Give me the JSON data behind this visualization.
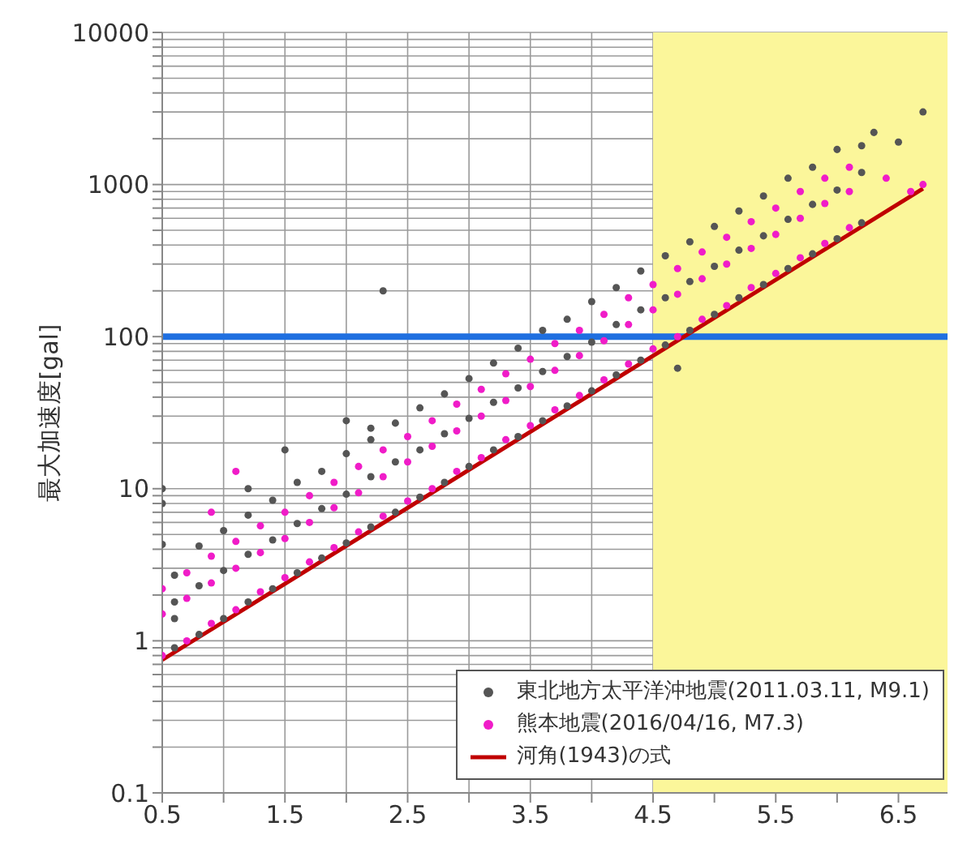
{
  "chart_data": {
    "type": "scatter",
    "ylabel": "最大加速度[gal]",
    "log": "y",
    "grid": true,
    "legend": "bottom right",
    "line_style": "solid",
    "xlim": [
      0.5,
      6.9
    ],
    "xticks": [
      0.5,
      {
        "value": 1,
        "label": null
      },
      1.5,
      {
        "value": 2,
        "label": null
      },
      2.5,
      {
        "value": 3,
        "label": null
      },
      3.5,
      {
        "value": 4,
        "label": null
      },
      4.5,
      {
        "value": 5,
        "label": null
      },
      5.5,
      {
        "value": 6,
        "label": null
      },
      6.5
    ],
    "ylim": [
      0.1,
      10000
    ],
    "yticks": [
      0.1,
      {
        "value": 0.2,
        "label": null
      },
      {
        "value": 0.3,
        "label": null
      },
      {
        "value": 0.4,
        "label": null
      },
      {
        "value": 0.5,
        "label": null
      },
      {
        "value": 0.6,
        "label": null
      },
      {
        "value": 0.7,
        "label": null
      },
      {
        "value": 0.8,
        "label": null
      },
      {
        "value": 0.9,
        "label": null
      },
      1,
      {
        "value": 2,
        "label": null
      },
      {
        "value": 3,
        "label": null
      },
      {
        "value": 4,
        "label": null
      },
      {
        "value": 5,
        "label": null
      },
      {
        "value": 6,
        "label": null
      },
      {
        "value": 7,
        "label": null
      },
      {
        "value": 8,
        "label": null
      },
      {
        "value": 9,
        "label": null
      },
      10,
      {
        "value": 20,
        "label": null
      },
      {
        "value": 30,
        "label": null
      },
      {
        "value": 40,
        "label": null
      },
      {
        "value": 50,
        "label": null
      },
      {
        "value": 60,
        "label": null
      },
      {
        "value": 70,
        "label": null
      },
      {
        "value": 80,
        "label": null
      },
      {
        "value": 90,
        "label": null
      },
      100,
      {
        "value": 200,
        "label": null
      },
      {
        "value": 300,
        "label": null
      },
      {
        "value": 400,
        "label": null
      },
      {
        "value": 500,
        "label": null
      },
      {
        "value": 600,
        "label": null
      },
      {
        "value": 700,
        "label": null
      },
      {
        "value": 800,
        "label": null
      },
      {
        "value": 900,
        "label": null
      },
      1000,
      {
        "value": 2000,
        "label": null
      },
      {
        "value": 3000,
        "label": null
      },
      {
        "value": 4000,
        "label": null
      },
      {
        "value": 5000,
        "label": null
      },
      {
        "value": 6000,
        "label": null
      },
      {
        "value": 7000,
        "label": null
      },
      {
        "value": 8000,
        "label": null
      },
      {
        "value": 9000,
        "label": null
      },
      10000
    ],
    "bands": [
      {
        "axis": "x",
        "from": 4.5,
        "to": 6.9,
        "color": "#fbf69a"
      }
    ],
    "ref_lines": [
      {
        "axis": "y",
        "value": 100,
        "color": "#1f6fe0"
      }
    ],
    "series": [
      {
        "name": "東北地方太平洋沖地震(2011.03.11, M9.1)",
        "color": "#555555",
        "marker": "circle",
        "x": [
          0.5,
          0.5,
          0.5,
          0.6,
          0.6,
          0.6,
          0.6,
          0.8,
          0.8,
          0.8,
          1.0,
          1.0,
          1.0,
          1.2,
          1.2,
          1.2,
          1.2,
          1.4,
          1.4,
          1.4,
          1.5,
          1.6,
          1.6,
          1.6,
          1.8,
          1.8,
          1.8,
          2.0,
          2.0,
          2.0,
          2.0,
          2.2,
          2.2,
          2.2,
          2.2,
          2.3,
          2.4,
          2.4,
          2.4,
          2.6,
          2.6,
          2.6,
          2.8,
          2.8,
          2.8,
          3.0,
          3.0,
          3.0,
          3.2,
          3.2,
          3.2,
          3.4,
          3.4,
          3.4,
          3.6,
          3.6,
          3.6,
          3.8,
          3.8,
          3.8,
          4.0,
          4.0,
          4.0,
          4.2,
          4.2,
          4.2,
          4.4,
          4.4,
          4.4,
          4.6,
          4.6,
          4.6,
          4.7,
          4.8,
          4.8,
          4.8,
          5.0,
          5.0,
          5.0,
          5.2,
          5.2,
          5.2,
          5.4,
          5.4,
          5.4,
          5.6,
          5.6,
          5.6,
          5.8,
          5.8,
          5.8,
          6.0,
          6.0,
          6.0,
          6.2,
          6.2,
          6.2,
          6.3,
          6.5,
          6.7
        ],
        "values": [
          10,
          8,
          4.3,
          0.9,
          1.8,
          2.7,
          1.4,
          1.1,
          2.3,
          4.2,
          1.4,
          2.9,
          5.3,
          1.8,
          3.7,
          6.7,
          10,
          2.2,
          4.6,
          8.4,
          18,
          2.8,
          5.9,
          11,
          3.5,
          7.4,
          13,
          4.4,
          9.2,
          17,
          28,
          5.6,
          12,
          21,
          25,
          200,
          7,
          15,
          27,
          8.8,
          18,
          34,
          11,
          23,
          42,
          14,
          29,
          53,
          18,
          37,
          67,
          22,
          46,
          84,
          28,
          59,
          110,
          35,
          74,
          130,
          44,
          92,
          170,
          56,
          120,
          210,
          70,
          150,
          270,
          88,
          180,
          340,
          62,
          110,
          230,
          420,
          140,
          290,
          530,
          180,
          370,
          670,
          220,
          460,
          840,
          280,
          590,
          1100,
          350,
          740,
          1300,
          440,
          920,
          1700,
          560,
          1200,
          1800,
          2200,
          1900,
          3000
        ]
      },
      {
        "name": "熊本地震(2016/04/16, M7.3)",
        "color": "#f01cc8",
        "marker": "circle",
        "x": [
          0.5,
          0.5,
          0.5,
          0.7,
          0.7,
          0.7,
          0.9,
          0.9,
          0.9,
          0.9,
          1.1,
          1.1,
          1.1,
          1.1,
          1.3,
          1.3,
          1.3,
          1.5,
          1.5,
          1.5,
          1.7,
          1.7,
          1.7,
          1.9,
          1.9,
          1.9,
          2.1,
          2.1,
          2.1,
          2.3,
          2.3,
          2.3,
          2.5,
          2.5,
          2.5,
          2.7,
          2.7,
          2.7,
          2.9,
          2.9,
          2.9,
          3.1,
          3.1,
          3.1,
          3.3,
          3.3,
          3.3,
          3.5,
          3.5,
          3.5,
          3.7,
          3.7,
          3.7,
          3.9,
          3.9,
          3.9,
          4.1,
          4.1,
          4.1,
          4.3,
          4.3,
          4.3,
          4.5,
          4.5,
          4.5,
          4.7,
          4.7,
          4.7,
          4.9,
          4.9,
          4.9,
          5.1,
          5.1,
          5.1,
          5.3,
          5.3,
          5.3,
          5.5,
          5.5,
          5.5,
          5.7,
          5.7,
          5.7,
          5.9,
          5.9,
          5.9,
          6.1,
          6.1,
          6.1,
          6.4,
          6.6,
          6.7
        ],
        "values": [
          0.8,
          1.5,
          2.2,
          1.0,
          1.9,
          2.8,
          1.3,
          2.4,
          3.6,
          7,
          1.6,
          3,
          4.5,
          13,
          2.1,
          3.8,
          5.7,
          2.6,
          4.7,
          7,
          3.3,
          6,
          9,
          4.1,
          7.5,
          11,
          5.2,
          9.4,
          14,
          6.6,
          12,
          18,
          8.3,
          15,
          22,
          10,
          19,
          28,
          13,
          24,
          36,
          16,
          30,
          45,
          21,
          38,
          57,
          26,
          47,
          71,
          33,
          60,
          90,
          41,
          75,
          110,
          52,
          94,
          140,
          66,
          120,
          180,
          83,
          150,
          220,
          100,
          190,
          280,
          130,
          240,
          360,
          160,
          300,
          450,
          210,
          380,
          570,
          260,
          470,
          700,
          330,
          600,
          900,
          410,
          750,
          1100,
          520,
          900,
          1300,
          1100,
          900,
          1000
        ]
      },
      {
        "name": "河角(1943)の式",
        "color": "#c00000",
        "type": "line",
        "marker": "none",
        "x": [
          0.5,
          6.7
        ],
        "values": [
          0.75,
          940
        ]
      }
    ]
  }
}
